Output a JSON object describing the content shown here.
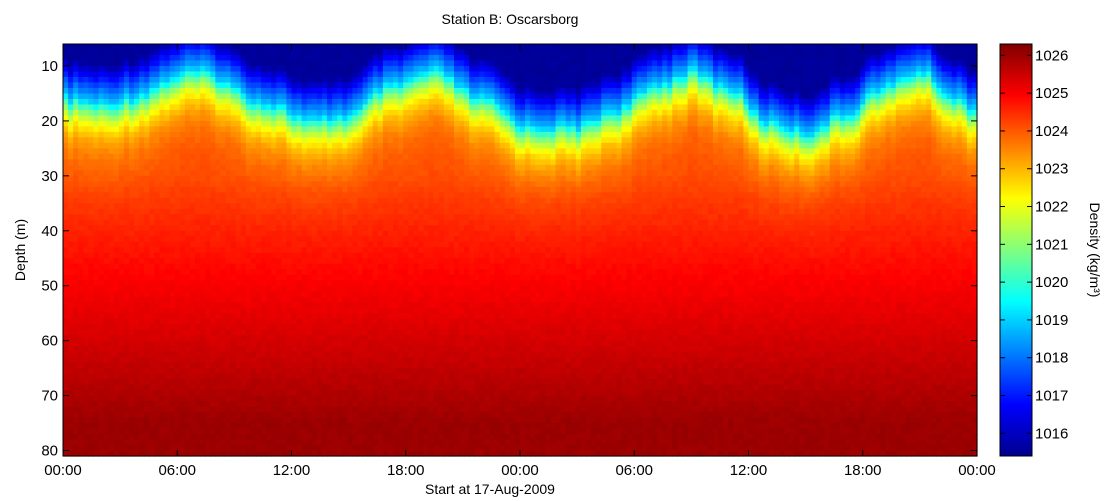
{
  "chart_data": {
    "type": "heatmap",
    "title": "Station B: Oscarsborg",
    "xlabel": "Start at 17-Aug-2009",
    "ylabel": "Depth (m)",
    "x_ticks": [
      "00:00",
      "06:00",
      "12:00",
      "18:00",
      "00:00",
      "06:00",
      "12:00",
      "18:00",
      "00:00"
    ],
    "x_range_hours": [
      0,
      48
    ],
    "y_ticks": [
      10,
      20,
      30,
      40,
      50,
      60,
      70,
      80
    ],
    "ylim": [
      6,
      81
    ],
    "y_reversed": true,
    "colorbar": {
      "label": "Density (kg/m³)",
      "colormap": "jet",
      "range": [
        1015.4,
        1026.3
      ],
      "ticks": [
        1016,
        1017,
        1018,
        1019,
        1020,
        1021,
        1022,
        1023,
        1024,
        1025,
        1026
      ]
    },
    "pycnocline_depth_profile": {
      "description_hours": [
        0,
        2.5,
        3,
        7,
        11,
        13,
        15,
        17,
        19.5,
        22,
        24.5,
        27,
        29,
        31.5,
        33,
        35,
        37,
        39,
        41,
        43,
        45,
        47,
        48
      ],
      "depth_of_1019_isopycnal_m": [
        16,
        17,
        16,
        11,
        17,
        20,
        19,
        14,
        11,
        16,
        21,
        21,
        18,
        13,
        11,
        14,
        20,
        22,
        19,
        14,
        11,
        16,
        18
      ]
    },
    "surface_min_density": 1015.5,
    "bottom_max_density": 1026.2,
    "grid": false
  }
}
